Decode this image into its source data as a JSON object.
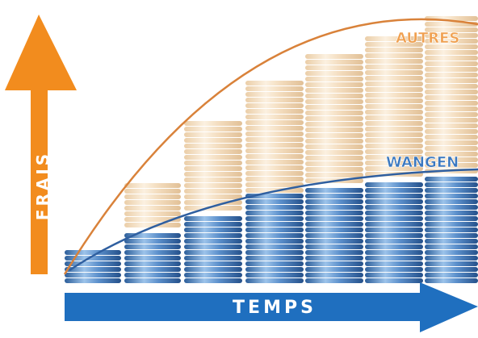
{
  "labels": {
    "y_axis": "FRAIS",
    "x_axis": "TEMPS",
    "upper_curve": "AUTRES",
    "lower_curve": "WANGEN"
  },
  "colors": {
    "y_arrow": "#f28c1e",
    "x_arrow": "#1f6fbf",
    "upper_curve": "#d9823a",
    "lower_curve": "#2f5fa0",
    "upper_coins": "#f1d2a8",
    "lower_coins": "#4f86c6",
    "upper_label": "#f0a050",
    "lower_label": "#3a78c0"
  },
  "icons": {
    "y_arrow": "arrow-up-icon",
    "x_arrow": "arrow-right-icon"
  }
}
